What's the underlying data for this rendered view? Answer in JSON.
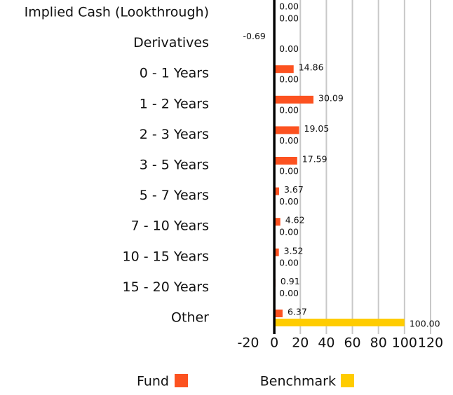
{
  "chart_data": {
    "type": "hbar",
    "categories": [
      "Implied Cash (Lookthrough)",
      "Derivatives",
      "0 - 1 Years",
      "1 - 2 Years",
      "2 - 3 Years",
      "3 - 5 Years",
      "5 - 7 Years",
      "7 - 10 Years",
      "10 - 15 Years",
      "15 - 20 Years",
      "Other"
    ],
    "series": [
      {
        "name": "Fund",
        "color": "#fc5220",
        "values": [
          0,
          -0.69,
          14.86,
          30.09,
          19.05,
          17.59,
          3.67,
          4.62,
          3.52,
          0.91,
          6.37
        ],
        "value_labels": [
          "0.00",
          "-0.69",
          "14.86",
          "30.09",
          "19.05",
          "17.59",
          "3.67",
          "4.62",
          "3.52",
          "0.91",
          "6.37"
        ]
      },
      {
        "name": "Benchmark",
        "color": "#ffcc00",
        "values": [
          0,
          0,
          0,
          0,
          0,
          0,
          0,
          0,
          0,
          0,
          100
        ],
        "value_labels": [
          "0.00",
          "0.00",
          "0.00",
          "0.00",
          "0.00",
          "0.00",
          "0.00",
          "0.00",
          "0.00",
          "0.00",
          "100.00"
        ]
      }
    ],
    "xlim": [
      -20,
      120
    ],
    "xticks": [
      -20,
      0,
      20,
      40,
      60,
      80,
      100,
      120
    ],
    "grid": true
  }
}
